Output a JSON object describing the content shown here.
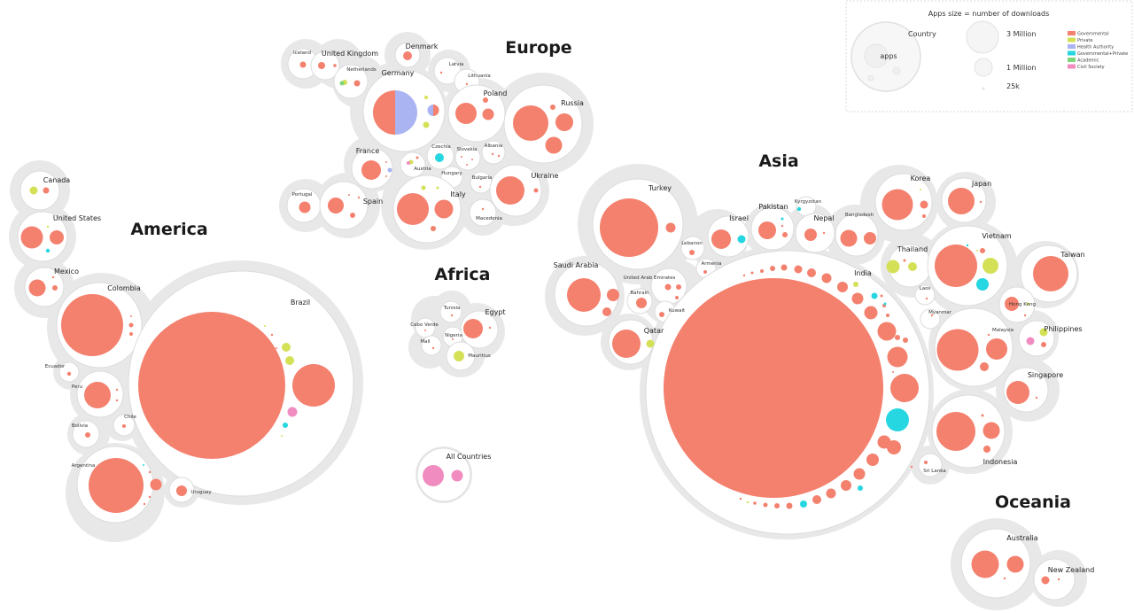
{
  "legend": {
    "title": "Apps size = number of downloads",
    "country_label": "Country",
    "apps_label": "apps",
    "sizes": [
      "3 Million",
      "1 Million",
      "25k"
    ],
    "types": [
      {
        "name": "Governmental",
        "color": "#f4806e"
      },
      {
        "name": "Private",
        "color": "#d4e157"
      },
      {
        "name": "Health Authority",
        "color": "#aab4f2"
      },
      {
        "name": "Governmental+Private",
        "color": "#26d6e0"
      },
      {
        "name": "Academic",
        "color": "#7ed67b"
      },
      {
        "name": "Civil Society",
        "color": "#f08cc0"
      }
    ]
  },
  "continents": [
    "Europe",
    "America",
    "Africa",
    "Asia",
    "Oceania"
  ],
  "countries": {
    "iceland": "Iceland",
    "uk": "United Kingdom",
    "netherlands": "Netherlands",
    "denmark": "Denmark",
    "latvia": "Latvia",
    "lithuania": "Lithuania",
    "germany": "Germany",
    "poland": "Poland",
    "russia": "Russia",
    "france": "France",
    "austria": "Austria",
    "czechia": "Czechia",
    "slovakia": "Slovakia",
    "albania": "Albania",
    "hungary": "Hungary",
    "bulgaria": "Bulgaria",
    "ukraine": "Ukraine",
    "portugal": "Portugal",
    "spain": "Spain",
    "italy": "Italy",
    "macedonia": "Macedonia",
    "canada": "Canada",
    "us": "United States",
    "mexico": "Mexico",
    "colombia": "Colombia",
    "brazil": "Brazil",
    "ecuador": "Ecuador",
    "peru": "Peru",
    "chile": "Chile",
    "bolivia": "Bolivia",
    "argentina": "Argentina",
    "uruguay": "Uruguay",
    "tunisia": "Tunisia",
    "egypt": "Egypt",
    "caboverde": "Cabo Verde",
    "mali": "Mali",
    "nigeria": "Nigeria",
    "mauritius": "Mauritius",
    "all": "All Countries",
    "turkey": "Turkey",
    "israel": "Israel",
    "pakistan": "Pakistan",
    "kyrgyzstan": "Kyrgyzstan",
    "nepal": "Nepal",
    "bangladesh": "Bangladesh",
    "korea": "Korea",
    "japan": "Japan",
    "lebanon": "Lebanon",
    "armenia": "Armenia",
    "saudi": "Saudi Arabia",
    "uae": "United Arab Emirates",
    "bahrain": "Bahrain",
    "kuwait": "Kuwait",
    "qatar": "Qatar",
    "india": "India",
    "thailand": "Thailand",
    "vietnam": "Vietnam",
    "taiwan": "Taiwan",
    "laos": "Laos",
    "hongkong": "Hong Kong",
    "myanmar": "Myanmar",
    "malaysia": "Malaysia",
    "philippines": "Philippines",
    "singapore": "Singapore",
    "indonesia": "Indonesia",
    "srilanka": "Sri Lanka",
    "australia": "Australia",
    "newzealand": "New Zealand"
  }
}
